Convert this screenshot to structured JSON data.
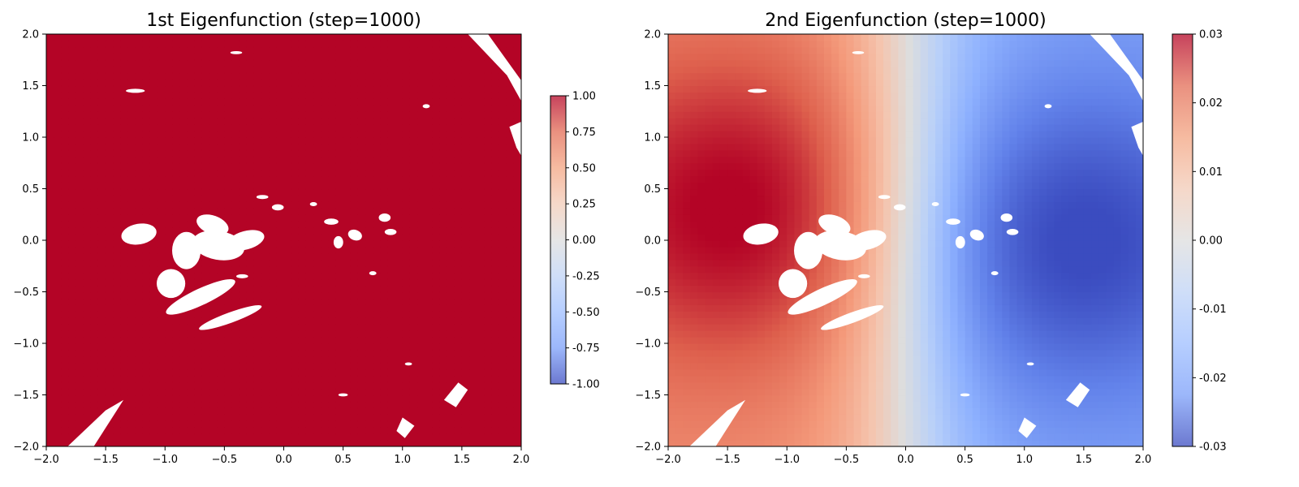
{
  "chart_data": [
    {
      "type": "scatter",
      "title": "1st Eigenfunction (step=1000)",
      "xlim": [
        -2.0,
        2.0
      ],
      "ylim": [
        -2.0,
        2.0
      ],
      "x_ticks": [
        "−2.0",
        "−1.5",
        "−1.0",
        "−0.5",
        "0.0",
        "0.5",
        "1.0",
        "1.5",
        "2.0"
      ],
      "y_ticks": [
        "−2.0",
        "−1.5",
        "−1.0",
        "−0.5",
        "0.0",
        "0.5",
        "1.0",
        "1.5",
        "2.0"
      ],
      "colormap": "coolwarm",
      "value_model": {
        "kind": "constant",
        "value": 1.0
      },
      "colorbar": {
        "range": [
          -1.0,
          1.0
        ],
        "ticks": [
          "1.00",
          "0.75",
          "0.50",
          "0.25",
          "0.00",
          "-0.25",
          "-0.50",
          "-0.75",
          "-1.00"
        ]
      },
      "grid": false
    },
    {
      "type": "scatter",
      "title": "2nd Eigenfunction (step=1000)",
      "xlim": [
        -2.0,
        2.0
      ],
      "ylim": [
        -2.0,
        2.0
      ],
      "x_ticks": [
        "−2.0",
        "−1.5",
        "−1.0",
        "−0.5",
        "0.0",
        "0.5",
        "1.0",
        "1.5",
        "2.0"
      ],
      "y_ticks": [
        "−2.0",
        "−1.5",
        "−1.0",
        "−0.5",
        "0.0",
        "0.5",
        "1.0",
        "1.5",
        "2.0"
      ],
      "colormap": "coolwarm",
      "value_model": {
        "kind": "dipole",
        "max_at": [
          -1.35,
          0.3
        ],
        "min_at": [
          1.35,
          0.0
        ],
        "zero_at_x": 0.0,
        "amplitude": 0.03
      },
      "colorbar": {
        "range": [
          -0.03,
          0.03
        ],
        "ticks": [
          "0.03",
          "0.02",
          "0.01",
          "0.00",
          "-0.01",
          "-0.02",
          "-0.03"
        ]
      },
      "grid": false
    }
  ],
  "colors": {
    "cmap_low": "#3b4cc0",
    "cmap_mid": "#dddddd",
    "cmap_high": "#b40426"
  }
}
